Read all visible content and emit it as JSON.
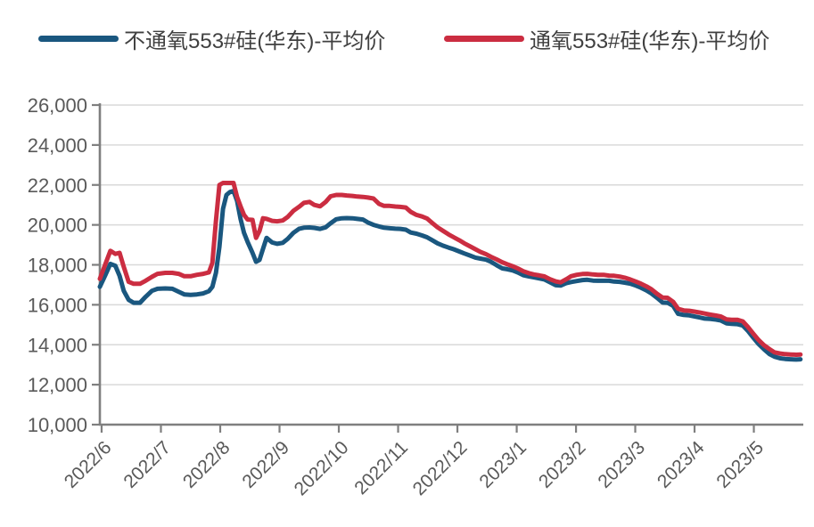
{
  "legend": {
    "items": [
      {
        "label": "不通氧553#硅(华东)-平均价",
        "color": "#1A577F"
      },
      {
        "label": "通氧553#硅(华东)-平均价",
        "color": "#CB2D41"
      }
    ]
  },
  "colors": {
    "background": "#FFFFFF",
    "grid": "#D9D9D9",
    "axis": "#7F7F7F",
    "tick_label": "#595959",
    "legend_text": "#404040",
    "series_blue": "#1A577F",
    "series_red": "#CB2D41"
  },
  "chart_data": {
    "type": "line",
    "title": "",
    "xlabel": "",
    "ylabel": "",
    "grid": true,
    "legend_position": "top",
    "ylim": [
      10000,
      26000
    ],
    "y_ticks": [
      {
        "value": 26000,
        "label": "26,000"
      },
      {
        "value": 24000,
        "label": "24,000"
      },
      {
        "value": 22000,
        "label": "22,000"
      },
      {
        "value": 20000,
        "label": "20,000"
      },
      {
        "value": 18000,
        "label": "18,000"
      },
      {
        "value": 16000,
        "label": "16,000"
      },
      {
        "value": 14000,
        "label": "14,000"
      },
      {
        "value": 12000,
        "label": "12,000"
      },
      {
        "value": 10000,
        "label": "10,000"
      }
    ],
    "x_ticks": [
      {
        "f": 0.0025,
        "label": "2022/6"
      },
      {
        "f": 0.0868,
        "label": "2022/7"
      },
      {
        "f": 0.1711,
        "label": "2022/8"
      },
      {
        "f": 0.2554,
        "label": "2022/9"
      },
      {
        "f": 0.3397,
        "label": "2022/10"
      },
      {
        "f": 0.424,
        "label": "2022/11"
      },
      {
        "f": 0.5083,
        "label": "2022/12"
      },
      {
        "f": 0.5926,
        "label": "2023/1"
      },
      {
        "f": 0.6769,
        "label": "2023/2"
      },
      {
        "f": 0.7611,
        "label": "2023/3"
      },
      {
        "f": 0.8454,
        "label": "2023/4"
      },
      {
        "f": 0.9297,
        "label": "2023/5"
      }
    ],
    "series": [
      {
        "name": "不通氧553#硅(华东)-平均价",
        "color": "#1A577F",
        "points": [
          [
            0.0,
            16900
          ],
          [
            0.008,
            17500
          ],
          [
            0.015,
            18050
          ],
          [
            0.022,
            17950
          ],
          [
            0.028,
            17450
          ],
          [
            0.034,
            16700
          ],
          [
            0.041,
            16250
          ],
          [
            0.048,
            16100
          ],
          [
            0.057,
            16100
          ],
          [
            0.065,
            16400
          ],
          [
            0.074,
            16700
          ],
          [
            0.082,
            16800
          ],
          [
            0.093,
            16820
          ],
          [
            0.103,
            16800
          ],
          [
            0.112,
            16650
          ],
          [
            0.12,
            16520
          ],
          [
            0.129,
            16500
          ],
          [
            0.138,
            16520
          ],
          [
            0.147,
            16570
          ],
          [
            0.155,
            16680
          ],
          [
            0.16,
            16900
          ],
          [
            0.165,
            17600
          ],
          [
            0.17,
            18900
          ],
          [
            0.175,
            20800
          ],
          [
            0.18,
            21500
          ],
          [
            0.185,
            21650
          ],
          [
            0.19,
            21700
          ],
          [
            0.195,
            21200
          ],
          [
            0.2,
            20300
          ],
          [
            0.205,
            19600
          ],
          [
            0.21,
            19150
          ],
          [
            0.217,
            18600
          ],
          [
            0.222,
            18150
          ],
          [
            0.227,
            18250
          ],
          [
            0.232,
            18800
          ],
          [
            0.237,
            19350
          ],
          [
            0.245,
            19120
          ],
          [
            0.252,
            19050
          ],
          [
            0.26,
            19100
          ],
          [
            0.267,
            19300
          ],
          [
            0.275,
            19600
          ],
          [
            0.283,
            19800
          ],
          [
            0.29,
            19860
          ],
          [
            0.298,
            19870
          ],
          [
            0.305,
            19850
          ],
          [
            0.313,
            19800
          ],
          [
            0.321,
            19880
          ],
          [
            0.328,
            20080
          ],
          [
            0.336,
            20280
          ],
          [
            0.344,
            20330
          ],
          [
            0.351,
            20340
          ],
          [
            0.359,
            20330
          ],
          [
            0.366,
            20300
          ],
          [
            0.374,
            20270
          ],
          [
            0.381,
            20120
          ],
          [
            0.389,
            20000
          ],
          [
            0.397,
            19920
          ],
          [
            0.404,
            19860
          ],
          [
            0.412,
            19830
          ],
          [
            0.42,
            19810
          ],
          [
            0.427,
            19800
          ],
          [
            0.435,
            19760
          ],
          [
            0.442,
            19620
          ],
          [
            0.45,
            19560
          ],
          [
            0.458,
            19470
          ],
          [
            0.465,
            19380
          ],
          [
            0.473,
            19220
          ],
          [
            0.48,
            19080
          ],
          [
            0.488,
            18960
          ],
          [
            0.496,
            18860
          ],
          [
            0.503,
            18780
          ],
          [
            0.511,
            18670
          ],
          [
            0.518,
            18570
          ],
          [
            0.526,
            18470
          ],
          [
            0.534,
            18360
          ],
          [
            0.541,
            18310
          ],
          [
            0.549,
            18260
          ],
          [
            0.556,
            18150
          ],
          [
            0.564,
            17980
          ],
          [
            0.572,
            17820
          ],
          [
            0.579,
            17780
          ],
          [
            0.587,
            17720
          ],
          [
            0.594,
            17620
          ],
          [
            0.602,
            17480
          ],
          [
            0.61,
            17420
          ],
          [
            0.617,
            17370
          ],
          [
            0.625,
            17320
          ],
          [
            0.632,
            17270
          ],
          [
            0.64,
            17120
          ],
          [
            0.648,
            16980
          ],
          [
            0.655,
            16960
          ],
          [
            0.663,
            17080
          ],
          [
            0.67,
            17140
          ],
          [
            0.678,
            17190
          ],
          [
            0.686,
            17240
          ],
          [
            0.693,
            17250
          ],
          [
            0.701,
            17210
          ],
          [
            0.708,
            17200
          ],
          [
            0.716,
            17200
          ],
          [
            0.724,
            17200
          ],
          [
            0.731,
            17160
          ],
          [
            0.739,
            17150
          ],
          [
            0.746,
            17110
          ],
          [
            0.754,
            17060
          ],
          [
            0.762,
            16960
          ],
          [
            0.769,
            16860
          ],
          [
            0.777,
            16720
          ],
          [
            0.784,
            16570
          ],
          [
            0.792,
            16350
          ],
          [
            0.8,
            16110
          ],
          [
            0.807,
            16100
          ],
          [
            0.815,
            15950
          ],
          [
            0.822,
            15550
          ],
          [
            0.83,
            15490
          ],
          [
            0.838,
            15470
          ],
          [
            0.845,
            15420
          ],
          [
            0.853,
            15360
          ],
          [
            0.86,
            15310
          ],
          [
            0.868,
            15290
          ],
          [
            0.876,
            15260
          ],
          [
            0.883,
            15210
          ],
          [
            0.891,
            15070
          ],
          [
            0.898,
            15050
          ],
          [
            0.906,
            15030
          ],
          [
            0.914,
            14960
          ],
          [
            0.921,
            14700
          ],
          [
            0.929,
            14350
          ],
          [
            0.936,
            14050
          ],
          [
            0.944,
            13780
          ],
          [
            0.952,
            13530
          ],
          [
            0.959,
            13400
          ],
          [
            0.967,
            13320
          ],
          [
            0.974,
            13290
          ],
          [
            0.982,
            13270
          ],
          [
            0.99,
            13260
          ],
          [
            0.996,
            13270
          ]
        ]
      },
      {
        "name": "通氧553#硅(华东)-平均价",
        "color": "#CB2D41",
        "points": [
          [
            0.0,
            17300
          ],
          [
            0.008,
            18050
          ],
          [
            0.015,
            18700
          ],
          [
            0.022,
            18550
          ],
          [
            0.028,
            18600
          ],
          [
            0.034,
            17900
          ],
          [
            0.041,
            17150
          ],
          [
            0.048,
            17050
          ],
          [
            0.057,
            17050
          ],
          [
            0.065,
            17200
          ],
          [
            0.074,
            17400
          ],
          [
            0.082,
            17550
          ],
          [
            0.093,
            17600
          ],
          [
            0.103,
            17600
          ],
          [
            0.112,
            17550
          ],
          [
            0.12,
            17430
          ],
          [
            0.129,
            17430
          ],
          [
            0.138,
            17500
          ],
          [
            0.147,
            17550
          ],
          [
            0.155,
            17620
          ],
          [
            0.16,
            18100
          ],
          [
            0.165,
            20200
          ],
          [
            0.17,
            22000
          ],
          [
            0.175,
            22100
          ],
          [
            0.18,
            22100
          ],
          [
            0.185,
            22100
          ],
          [
            0.19,
            22100
          ],
          [
            0.195,
            21400
          ],
          [
            0.2,
            20930
          ],
          [
            0.205,
            20500
          ],
          [
            0.21,
            20270
          ],
          [
            0.217,
            20250
          ],
          [
            0.222,
            19350
          ],
          [
            0.227,
            19700
          ],
          [
            0.232,
            20330
          ],
          [
            0.237,
            20300
          ],
          [
            0.245,
            20200
          ],
          [
            0.252,
            20180
          ],
          [
            0.26,
            20220
          ],
          [
            0.267,
            20400
          ],
          [
            0.275,
            20700
          ],
          [
            0.283,
            20900
          ],
          [
            0.29,
            21100
          ],
          [
            0.298,
            21150
          ],
          [
            0.305,
            21000
          ],
          [
            0.313,
            20930
          ],
          [
            0.321,
            21150
          ],
          [
            0.328,
            21430
          ],
          [
            0.336,
            21500
          ],
          [
            0.344,
            21500
          ],
          [
            0.351,
            21470
          ],
          [
            0.359,
            21450
          ],
          [
            0.366,
            21420
          ],
          [
            0.374,
            21400
          ],
          [
            0.381,
            21370
          ],
          [
            0.389,
            21320
          ],
          [
            0.397,
            21050
          ],
          [
            0.404,
            20950
          ],
          [
            0.412,
            20950
          ],
          [
            0.42,
            20920
          ],
          [
            0.427,
            20900
          ],
          [
            0.435,
            20870
          ],
          [
            0.442,
            20650
          ],
          [
            0.45,
            20500
          ],
          [
            0.458,
            20420
          ],
          [
            0.465,
            20320
          ],
          [
            0.473,
            20080
          ],
          [
            0.48,
            19880
          ],
          [
            0.488,
            19700
          ],
          [
            0.496,
            19520
          ],
          [
            0.503,
            19380
          ],
          [
            0.511,
            19230
          ],
          [
            0.518,
            19080
          ],
          [
            0.526,
            18930
          ],
          [
            0.534,
            18780
          ],
          [
            0.541,
            18650
          ],
          [
            0.549,
            18530
          ],
          [
            0.556,
            18400
          ],
          [
            0.564,
            18270
          ],
          [
            0.572,
            18130
          ],
          [
            0.579,
            18030
          ],
          [
            0.587,
            17930
          ],
          [
            0.594,
            17820
          ],
          [
            0.602,
            17680
          ],
          [
            0.61,
            17580
          ],
          [
            0.617,
            17520
          ],
          [
            0.625,
            17470
          ],
          [
            0.632,
            17420
          ],
          [
            0.64,
            17280
          ],
          [
            0.648,
            17170
          ],
          [
            0.655,
            17120
          ],
          [
            0.663,
            17280
          ],
          [
            0.67,
            17430
          ],
          [
            0.678,
            17500
          ],
          [
            0.686,
            17540
          ],
          [
            0.693,
            17550
          ],
          [
            0.701,
            17520
          ],
          [
            0.708,
            17500
          ],
          [
            0.716,
            17500
          ],
          [
            0.724,
            17460
          ],
          [
            0.731,
            17450
          ],
          [
            0.739,
            17410
          ],
          [
            0.746,
            17360
          ],
          [
            0.754,
            17270
          ],
          [
            0.762,
            17160
          ],
          [
            0.769,
            17060
          ],
          [
            0.777,
            16920
          ],
          [
            0.784,
            16780
          ],
          [
            0.792,
            16550
          ],
          [
            0.8,
            16360
          ],
          [
            0.807,
            16350
          ],
          [
            0.815,
            16150
          ],
          [
            0.822,
            15800
          ],
          [
            0.83,
            15720
          ],
          [
            0.838,
            15700
          ],
          [
            0.845,
            15660
          ],
          [
            0.853,
            15610
          ],
          [
            0.86,
            15560
          ],
          [
            0.868,
            15510
          ],
          [
            0.876,
            15460
          ],
          [
            0.883,
            15410
          ],
          [
            0.891,
            15270
          ],
          [
            0.898,
            15250
          ],
          [
            0.906,
            15250
          ],
          [
            0.914,
            15170
          ],
          [
            0.921,
            14900
          ],
          [
            0.929,
            14550
          ],
          [
            0.936,
            14250
          ],
          [
            0.944,
            13980
          ],
          [
            0.952,
            13780
          ],
          [
            0.959,
            13620
          ],
          [
            0.967,
            13560
          ],
          [
            0.974,
            13530
          ],
          [
            0.982,
            13510
          ],
          [
            0.99,
            13500
          ],
          [
            0.996,
            13510
          ]
        ]
      }
    ]
  }
}
